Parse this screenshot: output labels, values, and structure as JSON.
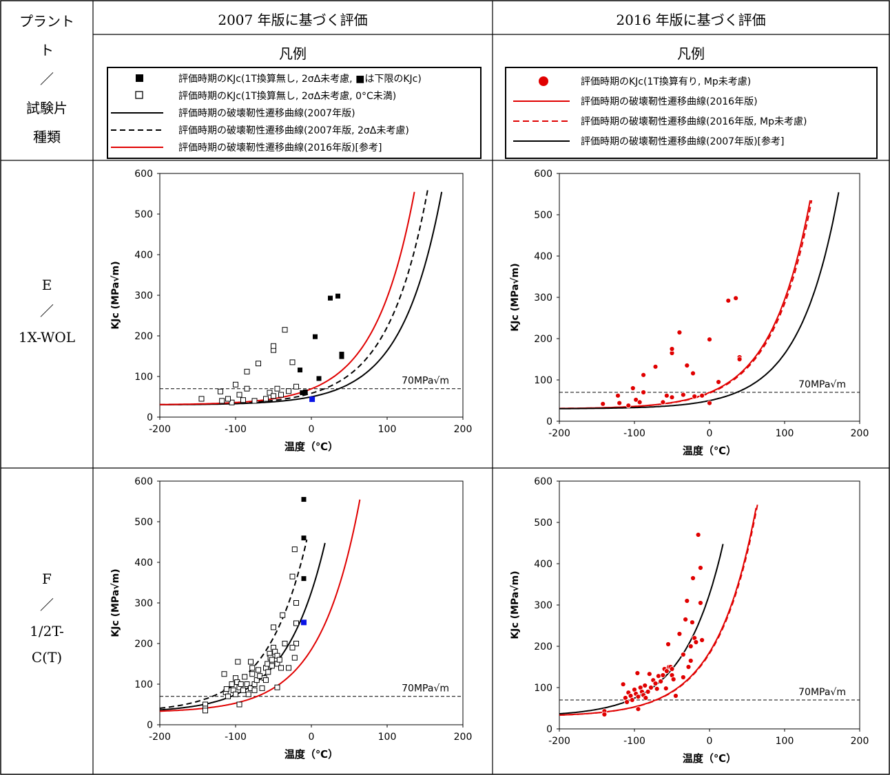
{
  "headers": {
    "plant_label": "プラント\nト\n／\n試験片\n種類",
    "col_2007": "2007 年版に基づく評価",
    "col_2016": "2016 年版に基づく評価",
    "legend_2007": "凡例",
    "legend_2016": "凡例"
  },
  "rows": [
    {
      "label_lines": [
        "E",
        "／",
        "1X-WOL"
      ]
    },
    {
      "label_lines": [
        "F",
        "／",
        "1/2T-",
        "C(T)"
      ]
    }
  ],
  "legend_2007": [
    {
      "symbol": "filled-square",
      "text": "評価時期のKJc(1T換算無し, 2σΔ未考慮, ■は下限のKJc)"
    },
    {
      "symbol": "open-square",
      "text": "評価時期のKJc(1T換算無し, 2σΔ未考慮, 0°C未満)"
    },
    {
      "symbol": "black-solid",
      "text": "評価時期の破壊靭性遷移曲線(2007年版)"
    },
    {
      "symbol": "black-dashed",
      "text": "評価時期の破壊靭性遷移曲線(2007年版, 2σΔ未考慮)"
    },
    {
      "symbol": "red-solid",
      "text": "評価時期の破壊靭性遷移曲線(2016年版)[参考]"
    }
  ],
  "legend_2016": [
    {
      "symbol": "red-dot",
      "text": "評価時期のKJc(1T換算有り, Mp未考慮)"
    },
    {
      "symbol": "red-solid",
      "text": "評価時期の破壊靭性遷移曲線(2016年版)"
    },
    {
      "symbol": "red-dashed",
      "text": "評価時期の破壊靭性遷移曲線(2016年版, Mp未考慮)"
    },
    {
      "symbol": "black-solid",
      "text": "評価時期の破壊靭性遷移曲線(2007年版)[参考]"
    }
  ],
  "colors": {
    "black": "#000000",
    "red": "#e00000",
    "blue": "#0a14e6"
  },
  "chart_data": [
    {
      "type": "scatter",
      "id": "E-2007",
      "xlabel": "温度（℃）",
      "ylabel": "KJc (MPa√m)",
      "xlim": [
        -200,
        200
      ],
      "ylim": [
        0,
        600
      ],
      "xticks": [
        -200,
        -100,
        0,
        100,
        200
      ],
      "yticks": [
        0,
        100,
        200,
        300,
        400,
        500,
        600
      ],
      "ref_line": {
        "y": 70,
        "label": "70MPa√m"
      },
      "curves": [
        {
          "style": "black-solid",
          "T0": 66,
          "end_x": 173
        },
        {
          "style": "black-dashed",
          "T0": 47,
          "end_x": 154
        },
        {
          "style": "red-solid",
          "T0": 30,
          "end_x": 137
        }
      ],
      "filled_squares": [
        [
          25,
          293
        ],
        [
          35,
          298
        ],
        [
          5,
          198
        ],
        [
          40,
          155
        ],
        [
          40,
          149
        ],
        [
          10,
          95
        ],
        [
          -15,
          116
        ],
        [
          -12,
          60
        ],
        [
          -8,
          62
        ]
      ],
      "open_squares": [
        [
          -145,
          45
        ],
        [
          -120,
          63
        ],
        [
          -118,
          40
        ],
        [
          -105,
          36
        ],
        [
          -100,
          80
        ],
        [
          -95,
          55
        ],
        [
          -90,
          42
        ],
        [
          -85,
          112
        ],
        [
          -85,
          70
        ],
        [
          -70,
          132
        ],
        [
          -60,
          45
        ],
        [
          -55,
          60
        ],
        [
          -50,
          52
        ],
        [
          -50,
          165
        ],
        [
          -50,
          175
        ],
        [
          -45,
          70
        ],
        [
          -35,
          215
        ],
        [
          -30,
          64
        ],
        [
          -25,
          135
        ],
        [
          -20,
          75
        ],
        [
          -110,
          45
        ],
        [
          -75,
          40
        ],
        [
          -40,
          55
        ]
      ],
      "blue_squares": [
        [
          1,
          44
        ]
      ]
    },
    {
      "type": "scatter",
      "id": "E-2016",
      "xlabel": "温度（℃）",
      "ylabel": "KJc (MPa√m)",
      "xlim": [
        -200,
        200
      ],
      "ylim": [
        0,
        600
      ],
      "xticks": [
        -200,
        -100,
        0,
        100,
        200
      ],
      "yticks": [
        0,
        100,
        200,
        300,
        400,
        500,
        600
      ],
      "ref_line": {
        "y": 70,
        "label": "70MPa√m"
      },
      "curves": [
        {
          "style": "red-solid",
          "T0": 30,
          "end_x": 134
        },
        {
          "style": "red-dashed",
          "T0": 32,
          "end_x": 136
        },
        {
          "style": "black-solid",
          "T0": 66,
          "end_x": 173
        }
      ],
      "dots": [
        [
          -142,
          42
        ],
        [
          -122,
          62
        ],
        [
          -120,
          44
        ],
        [
          -108,
          38
        ],
        [
          -102,
          80
        ],
        [
          -98,
          52
        ],
        [
          -93,
          46
        ],
        [
          -88,
          112
        ],
        [
          -88,
          70
        ],
        [
          -72,
          132
        ],
        [
          -62,
          46
        ],
        [
          -57,
          62
        ],
        [
          -50,
          58
        ],
        [
          -50,
          165
        ],
        [
          -50,
          175
        ],
        [
          -40,
          215
        ],
        [
          -35,
          64
        ],
        [
          -30,
          135
        ],
        [
          -22,
          116
        ],
        [
          -20,
          60
        ],
        [
          0,
          44
        ],
        [
          0,
          198
        ],
        [
          12,
          95
        ],
        [
          25,
          292
        ],
        [
          35,
          298
        ],
        [
          40,
          155
        ],
        [
          40,
          150
        ],
        [
          -10,
          62
        ]
      ]
    },
    {
      "type": "scatter",
      "id": "F-2007",
      "xlabel": "温度（℃）",
      "ylabel": "KJc (MPa√m)",
      "xlim": [
        -200,
        200
      ],
      "ylim": [
        0,
        600
      ],
      "xticks": [
        -200,
        -100,
        0,
        100,
        200
      ],
      "yticks": [
        0,
        100,
        200,
        300,
        400,
        500,
        600
      ],
      "ref_line": {
        "y": 70,
        "label": "70MPa√m"
      },
      "curves": [
        {
          "style": "black-solid",
          "T0": -76,
          "end_x": 19
        },
        {
          "style": "black-dashed",
          "T0": -101,
          "end_x": -5
        },
        {
          "style": "red-solid",
          "T0": -42,
          "end_x": 64
        }
      ],
      "filled_squares": [
        [
          -10,
          555
        ],
        [
          -10,
          460
        ],
        [
          -10,
          360
        ]
      ],
      "blue_squares": [
        [
          -10,
          252
        ]
      ],
      "open_squares": [
        [
          -140,
          50
        ],
        [
          -140,
          40
        ],
        [
          -140,
          35
        ],
        [
          -115,
          125
        ],
        [
          -113,
          80
        ],
        [
          -112,
          88
        ],
        [
          -110,
          70
        ],
        [
          -105,
          100
        ],
        [
          -103,
          85
        ],
        [
          -100,
          115
        ],
        [
          -100,
          75
        ],
        [
          -98,
          105
        ],
        [
          -97,
          155
        ],
        [
          -95,
          92
        ],
        [
          -95,
          50
        ],
        [
          -93,
          100
        ],
        [
          -90,
          85
        ],
        [
          -88,
          118
        ],
        [
          -85,
          100
        ],
        [
          -83,
          75
        ],
        [
          -80,
          155
        ],
        [
          -80,
          90
        ],
        [
          -78,
          140
        ],
        [
          -78,
          125
        ],
        [
          -75,
          100
        ],
        [
          -72,
          110
        ],
        [
          -70,
          135
        ],
        [
          -68,
          120
        ],
        [
          -65,
          90
        ],
        [
          -62,
          115
        ],
        [
          -60,
          140
        ],
        [
          -58,
          150
        ],
        [
          -57,
          130
        ],
        [
          -55,
          175
        ],
        [
          -54,
          165
        ],
        [
          -52,
          160
        ],
        [
          -52,
          145
        ],
        [
          -50,
          190
        ],
        [
          -50,
          240
        ],
        [
          -48,
          180
        ],
        [
          -45,
          150
        ],
        [
          -45,
          170
        ],
        [
          -42,
          160
        ],
        [
          -40,
          140
        ],
        [
          -38,
          270
        ],
        [
          -35,
          200
        ],
        [
          -30,
          140
        ],
        [
          -25,
          365
        ],
        [
          -22,
          432
        ],
        [
          -20,
          300
        ],
        [
          -20,
          250
        ],
        [
          -20,
          200
        ],
        [
          -25,
          190
        ],
        [
          -22,
          165
        ],
        [
          -45,
          92
        ],
        [
          -60,
          110
        ],
        [
          -75,
          85
        ]
      ]
    },
    {
      "type": "scatter",
      "id": "F-2016",
      "xlabel": "温度（℃）",
      "ylabel": "KJc (MPa√m)",
      "xlim": [
        -200,
        200
      ],
      "ylim": [
        0,
        600
      ],
      "xticks": [
        -200,
        -100,
        0,
        100,
        200
      ],
      "yticks": [
        0,
        100,
        200,
        300,
        400,
        500,
        600
      ],
      "ref_line": {
        "y": 70,
        "label": "70MPa√m"
      },
      "curves": [
        {
          "style": "red-solid",
          "T0": -42,
          "end_x": 63
        },
        {
          "style": "red-dashed",
          "T0": -41,
          "end_x": 65
        },
        {
          "style": "black-solid",
          "T0": -76,
          "end_x": 19
        }
      ],
      "dots": [
        [
          -140,
          43
        ],
        [
          -140,
          35
        ],
        [
          -115,
          108
        ],
        [
          -112,
          75
        ],
        [
          -110,
          65
        ],
        [
          -108,
          88
        ],
        [
          -105,
          80
        ],
        [
          -103,
          70
        ],
        [
          -100,
          95
        ],
        [
          -98,
          85
        ],
        [
          -96,
          135
        ],
        [
          -95,
          78
        ],
        [
          -95,
          48
        ],
        [
          -92,
          100
        ],
        [
          -90,
          90
        ],
        [
          -88,
          82
        ],
        [
          -86,
          105
        ],
        [
          -85,
          75
        ],
        [
          -82,
          90
        ],
        [
          -80,
          133
        ],
        [
          -78,
          100
        ],
        [
          -75,
          118
        ],
        [
          -72,
          110
        ],
        [
          -70,
          97
        ],
        [
          -68,
          128
        ],
        [
          -65,
          115
        ],
        [
          -62,
          130
        ],
        [
          -60,
          145
        ],
        [
          -58,
          98
        ],
        [
          -57,
          140
        ],
        [
          -55,
          205
        ],
        [
          -54,
          150
        ],
        [
          -52,
          150
        ],
        [
          -50,
          145
        ],
        [
          -50,
          130
        ],
        [
          -48,
          120
        ],
        [
          -45,
          80
        ],
        [
          -40,
          230
        ],
        [
          -35,
          180
        ],
        [
          -32,
          265
        ],
        [
          -30,
          310
        ],
        [
          -28,
          150
        ],
        [
          -25,
          200
        ],
        [
          -25,
          165
        ],
        [
          -23,
          258
        ],
        [
          -22,
          365
        ],
        [
          -20,
          220
        ],
        [
          -18,
          210
        ],
        [
          -15,
          470
        ],
        [
          -12,
          390
        ],
        [
          -12,
          305
        ],
        [
          -10,
          215
        ],
        [
          -35,
          125
        ]
      ]
    }
  ]
}
